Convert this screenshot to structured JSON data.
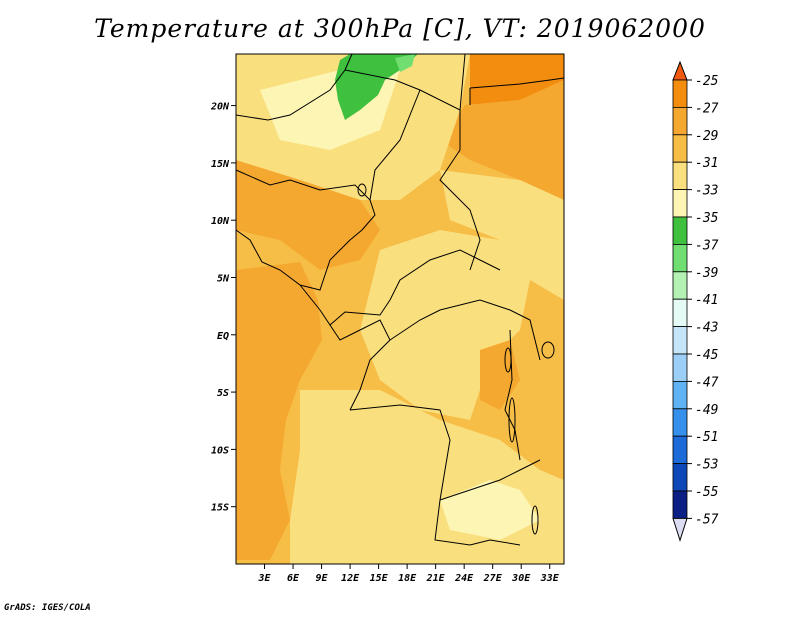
{
  "title": "Temperature at 300hPa [C], VT: 2019062000",
  "credit": "GrADS: IGES/COLA",
  "map": {
    "lon_range": [
      0,
      34.5
    ],
    "lat_range": [
      -20,
      24.5
    ],
    "lon_ticks": [
      "3E",
      "6E",
      "9E",
      "12E",
      "15E",
      "18E",
      "21E",
      "24E",
      "27E",
      "30E",
      "33E"
    ],
    "lat_ticks": [
      "20N",
      "15N",
      "10N",
      "5N",
      "EQ",
      "5S",
      "10S",
      "15S"
    ]
  },
  "legend": {
    "labels": [
      "-25",
      "-27",
      "-29",
      "-31",
      "-33",
      "-35",
      "-37",
      "-39",
      "-41",
      "-43",
      "-45",
      "-47",
      "-49",
      "-51",
      "-53",
      "-55",
      "-57"
    ],
    "colors": [
      "#f05a10",
      "#f38d10",
      "#f5a830",
      "#f6bd47",
      "#fadf7e",
      "#fdf5b4",
      "#3fc03f",
      "#70de70",
      "#b3f2b3",
      "#e4fbf6",
      "#c5e6f8",
      "#9ccff6",
      "#5fb2f4",
      "#3590ec",
      "#1d6bd8",
      "#0e48b8",
      "#0b1f84",
      "#dcdcf5"
    ]
  }
}
